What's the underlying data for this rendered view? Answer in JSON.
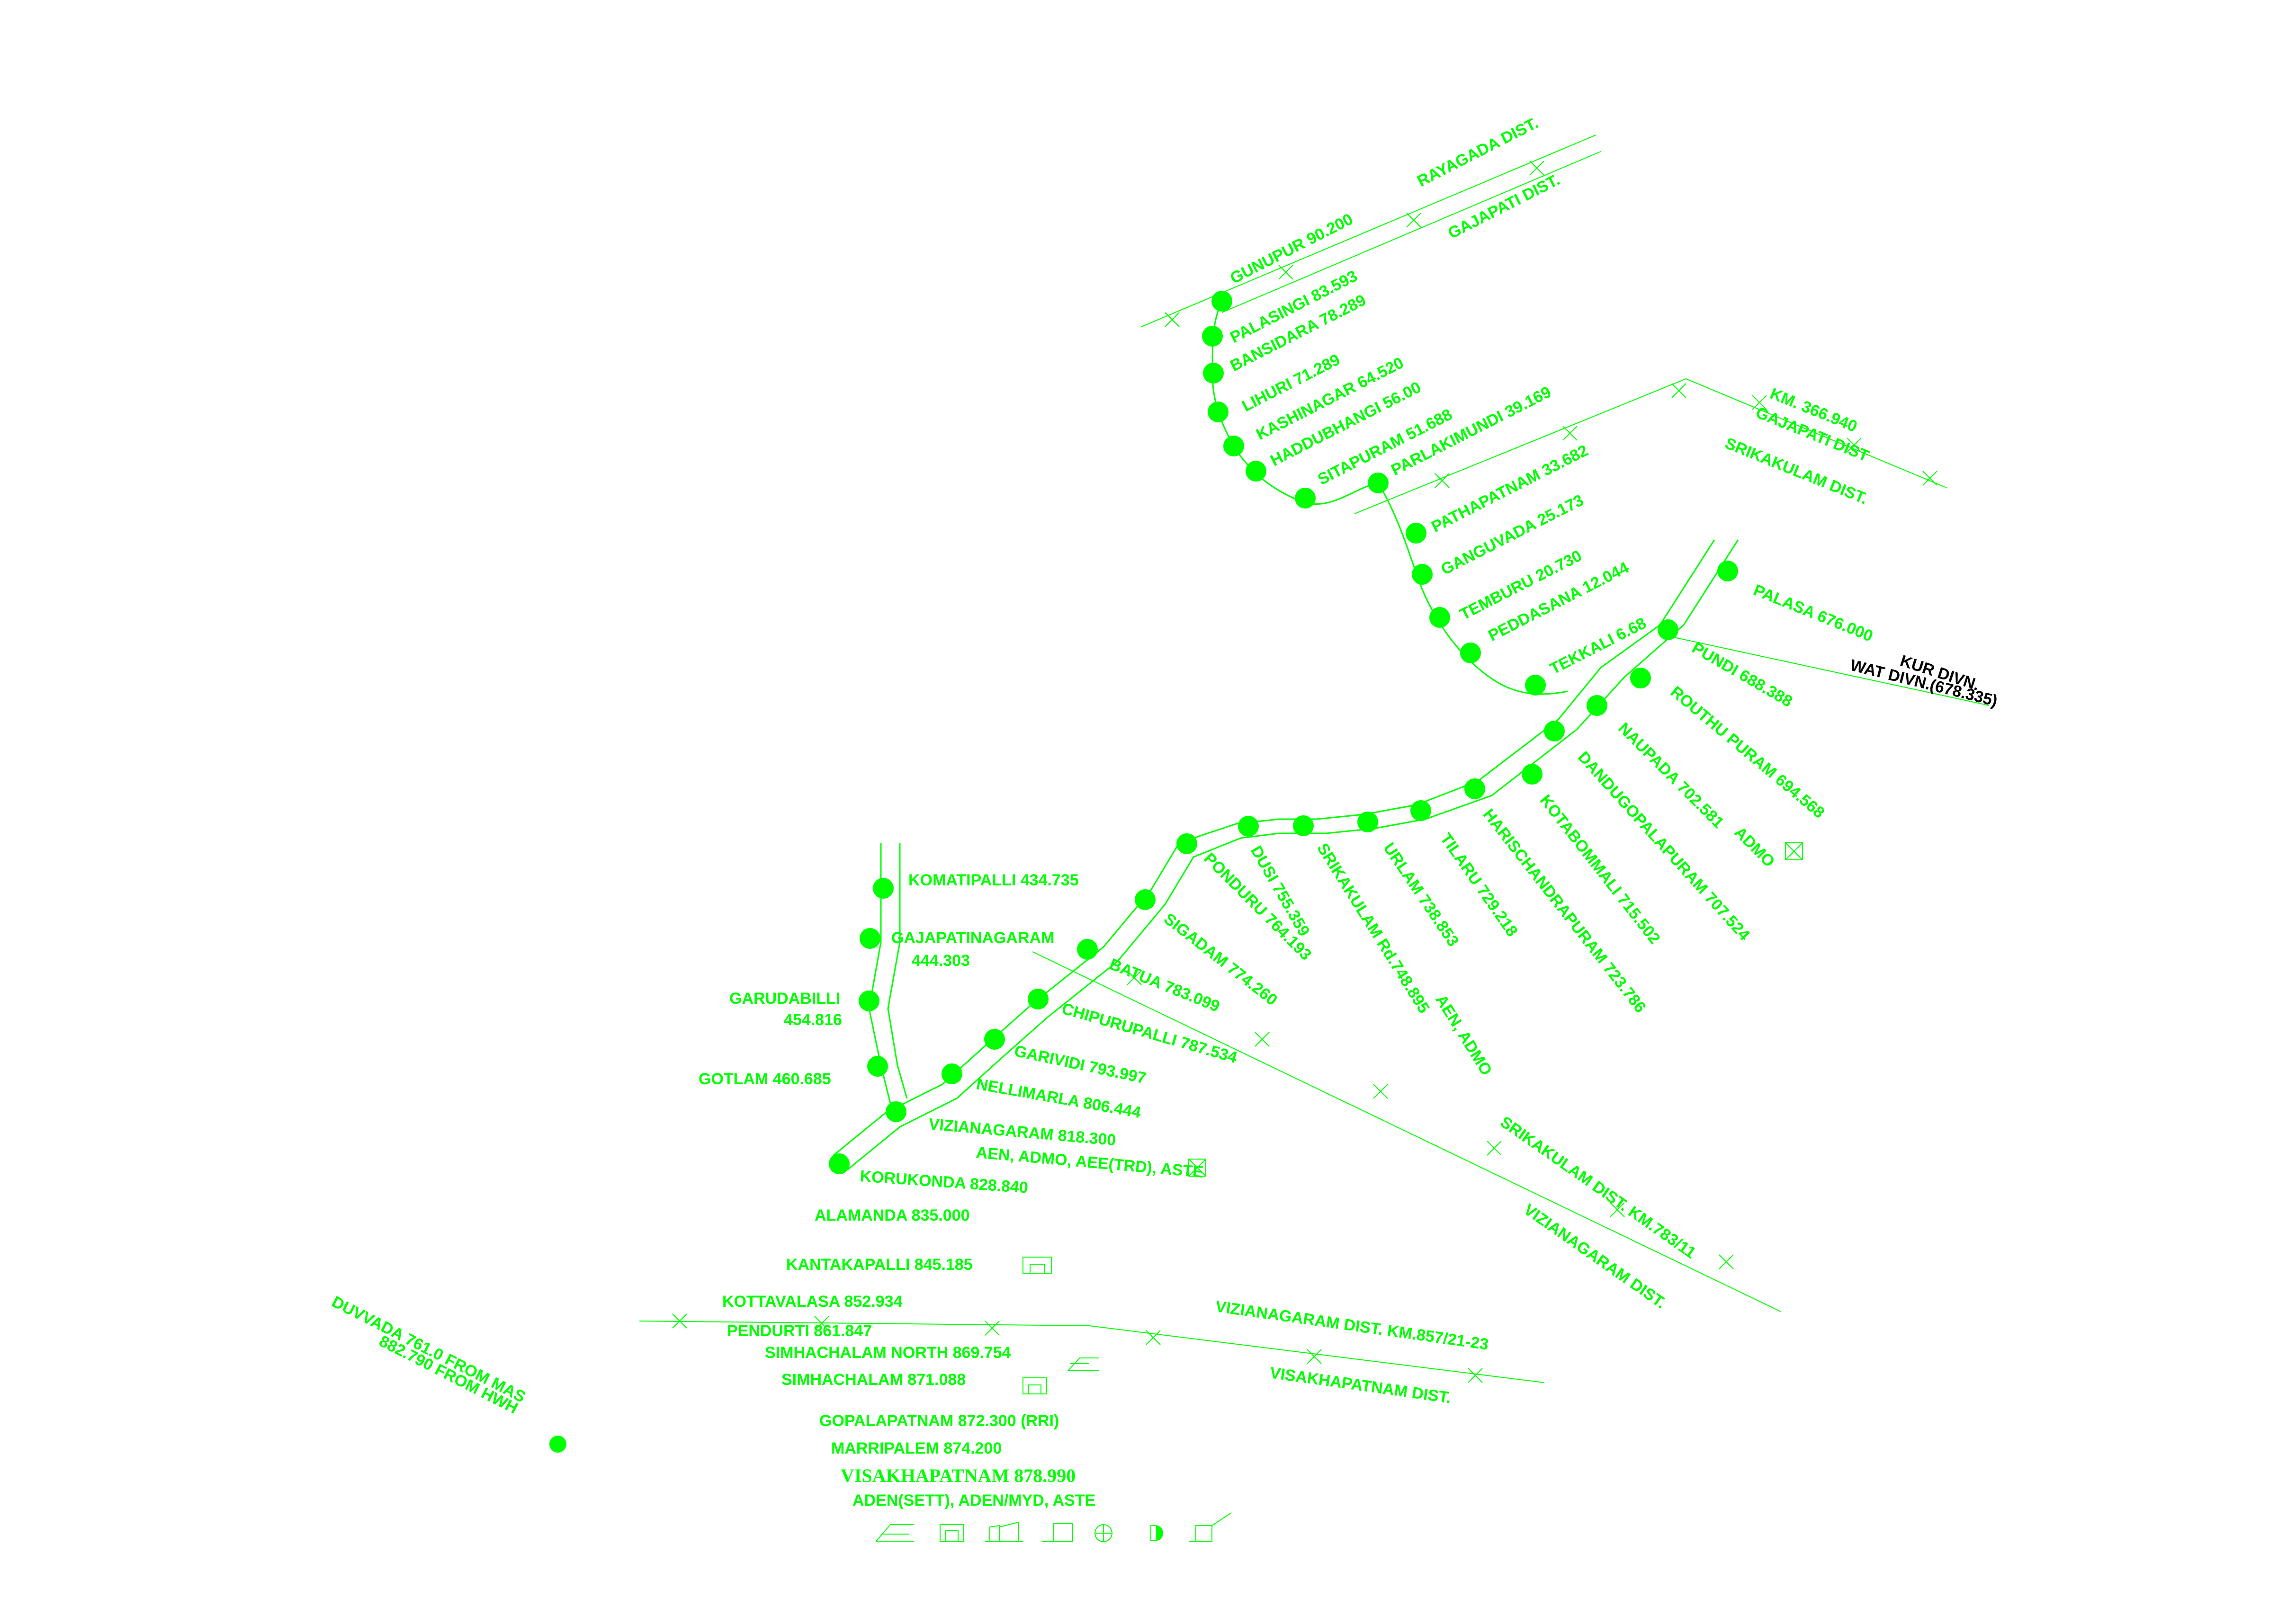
{
  "colors": {
    "line": "#00ff00",
    "division_text": "#000000",
    "background": "#ffffff"
  },
  "gunupur_branch": {
    "gunupur": "GUNUPUR 90.200",
    "palasingi": "PALASINGI 83.593",
    "bansidara": "BANSIDARA 78.289",
    "lihuri": "LIHURI 71.289",
    "kashinagar": "KASHINAGAR 64.520",
    "haddubhangi": "HADDUBHANGI 56.00",
    "sitapuram": "SITAPURAM 51.688",
    "parlakimundi": "PARLAKIMUNDI 39.169",
    "pathapatnam": "PATHAPATNAM 33.682",
    "ganguvada": "GANGUVADA 25.173",
    "temburu": "TEMBURU 20.730",
    "peddasana": "PEDDASANA 12.044",
    "tekkali": "TEKKALI 6.68"
  },
  "main_line": {
    "palasa": "PALASA 676.000",
    "pundi": "PUNDI 688.388",
    "routhu_puram": "ROUTHU PURAM 694.568",
    "naupada": "NAUPADA 702.581",
    "admo": "ADMO",
    "dandugopalapuram": "DANDUGOPALAPURAM 707.524",
    "kotabommali": "KOTABOMMALI 715.502",
    "harischandrapuram": "HARISCHANDRAPURAM 723.786",
    "tilaru": "TILARU 729.218",
    "urlam": "URLAM 738.853",
    "srikakulam_rd": "SRIKAKULAM Rd.748.895",
    "srikakulam_rd_staff": "AEN, ADMO",
    "dusi": "DUSI 755.359",
    "ponduru": "PONDURU 764.193",
    "sigadam": "SIGADAM 774.260",
    "batua": "BATUA 783.099",
    "chipurupalli": "CHIPURUPALLI 787.534",
    "garividi": "GARIVIDI 793.997",
    "nellimarla": "NELLIMARLA 806.444",
    "vizianagaram": "VIZIANAGARAM 818.300",
    "vizianagaram_staff": "AEN, ADMO, AEE(TRD), ASTE",
    "korukonda": "KORUKONDA 828.840",
    "alamanda": "ALAMANDA 835.000",
    "kantakapalli": "KANTAKAPALLI 845.185",
    "kottavalasa": "KOTTAVALASA 852.934",
    "pendurti": "PENDURTI 861.847",
    "simhachalam_north": "SIMHACHALAM NORTH 869.754",
    "simhachalam": "SIMHACHALAM 871.088",
    "gopalapatnam": "GOPALAPATNAM 872.300 (RRI)",
    "marripalem": "MARRIPALEM 874.200",
    "visakhapatnam": "VISAKHAPATNAM 878.990",
    "visakhapatnam_staff": "ADEN(SETT), ADEN/MYD, ASTE"
  },
  "rayagada_branch": {
    "komatipalli": "KOMATIPALLI 434.735",
    "gajapatinagaram": "GAJAPATINAGARAM",
    "gajapatinagaram_km": "444.303",
    "garudabilli": "GARUDABILLI",
    "garudabilli_km": "454.816",
    "gotlam": "GOTLAM 460.685"
  },
  "duvvada": {
    "line1": "DUVVADA 761.0 FROM MAS",
    "line2": "882.790 FROM HWH"
  },
  "divisions": {
    "kur": "KUR DIVN.",
    "wat": "WAT DIVN.(678.335)"
  },
  "districts": {
    "rayagada": "RAYAGADA DIST.",
    "gajapati": "GAJAPATI DIST.",
    "km_366": "KM. 366.940",
    "gajapati_dist": "GAJAPATI DIST",
    "srikakulam_north": "SRIKAKULAM DIST.",
    "srikakulam_km": "SRIKAKULAM DIST. KM.783/11",
    "vizianagaram": "VIZIANAGARAM DIST.",
    "vizianagaram_km": "VIZIANAGARAM DIST. KM.857/21-23",
    "visakhapatnam": "VISAKHAPATNAM DIST."
  },
  "icons": [
    "level-crossing-icon",
    "station-building-icon",
    "shed-icon",
    "signal-icon",
    "circle-cross-icon",
    "half-disc-icon",
    "flag-icon"
  ]
}
